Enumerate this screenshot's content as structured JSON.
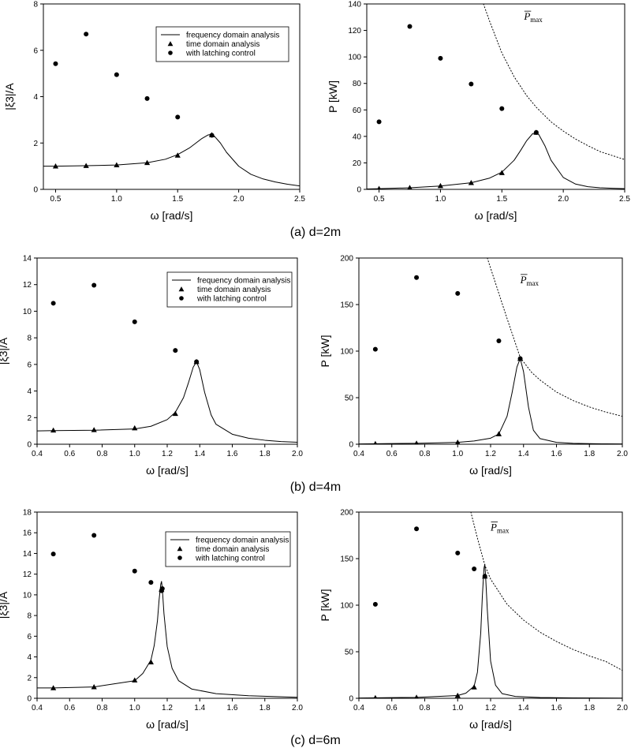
{
  "figure": {
    "captions": [
      "(a) d=2m",
      "(b) d=4m",
      "(c) d=6m"
    ]
  },
  "legend_labels": {
    "line": "frequency domain analysis",
    "triangle": "time domain analysis",
    "circle": "with latching control"
  },
  "pmax_label": {
    "symbol": "P",
    "subscript": "max"
  },
  "chart_data": [
    {
      "id": "a-left",
      "type": "line",
      "xlabel": "ω [rad/s]",
      "ylabel": "|ξ3|/A",
      "xlim": [
        0.4,
        2.5
      ],
      "ylim": [
        0,
        8
      ],
      "xticks": [
        0.5,
        1.0,
        1.5,
        2.0,
        2.5
      ],
      "xtick_labels": [
        "0.5",
        "1.0",
        "1.5",
        "2.0",
        "2.5"
      ],
      "yticks": [
        0,
        2,
        4,
        6,
        8
      ],
      "ytick_labels": [
        "0",
        "2",
        "4",
        "6",
        "8"
      ],
      "series": [
        {
          "name": "frequency domain analysis",
          "kind": "line",
          "x": [
            0.4,
            0.5,
            0.75,
            1.0,
            1.25,
            1.4,
            1.5,
            1.6,
            1.65,
            1.7,
            1.75,
            1.78,
            1.8,
            1.85,
            1.9,
            2.0,
            2.1,
            2.2,
            2.3,
            2.4,
            2.5
          ],
          "y": [
            1.0,
            1.0,
            1.02,
            1.05,
            1.15,
            1.3,
            1.5,
            1.8,
            2.0,
            2.2,
            2.35,
            2.37,
            2.3,
            2.0,
            1.6,
            1.0,
            0.65,
            0.45,
            0.32,
            0.22,
            0.15
          ]
        },
        {
          "name": "time domain analysis",
          "kind": "triangle",
          "x": [
            0.5,
            0.75,
            1.0,
            1.25,
            1.5,
            1.78
          ],
          "y": [
            1.0,
            1.02,
            1.05,
            1.15,
            1.47,
            2.35
          ]
        },
        {
          "name": "with latching control",
          "kind": "circle",
          "x": [
            0.5,
            0.75,
            1.0,
            1.25,
            1.5,
            1.78
          ],
          "y": [
            5.42,
            6.7,
            4.95,
            3.92,
            3.12,
            2.33
          ]
        }
      ],
      "legend": "top-right"
    },
    {
      "id": "a-right",
      "type": "line",
      "xlabel": "ω [rad/s]",
      "ylabel": "P [kW]",
      "xlim": [
        0.4,
        2.5
      ],
      "ylim": [
        0,
        140
      ],
      "xticks": [
        0.5,
        1.0,
        1.5,
        2.0,
        2.5
      ],
      "xtick_labels": [
        "0.5",
        "1.0",
        "1.5",
        "2.0",
        "2.5"
      ],
      "yticks": [
        0,
        20,
        40,
        60,
        80,
        100,
        120,
        140
      ],
      "ytick_labels": [
        "0",
        "20",
        "40",
        "60",
        "80",
        "100",
        "120",
        "140"
      ],
      "series": [
        {
          "name": "frequency domain analysis",
          "kind": "line",
          "x": [
            0.4,
            0.5,
            0.75,
            1.0,
            1.25,
            1.4,
            1.5,
            1.6,
            1.65,
            1.7,
            1.75,
            1.78,
            1.8,
            1.85,
            1.9,
            2.0,
            2.1,
            2.2,
            2.3,
            2.4,
            2.5
          ],
          "y": [
            0.3,
            0.5,
            1.2,
            2.5,
            5.0,
            8.5,
            13.0,
            22.0,
            29.0,
            36.5,
            42.0,
            43.0,
            41.5,
            33.0,
            22.0,
            9.0,
            4.0,
            2.0,
            1.2,
            0.8,
            0.5
          ]
        },
        {
          "name": "P̄max",
          "kind": "dotted",
          "x": [
            1.35,
            1.4,
            1.5,
            1.6,
            1.7,
            1.78,
            1.9,
            2.0,
            2.1,
            2.2,
            2.3,
            2.4,
            2.5
          ],
          "y": [
            140,
            127,
            103,
            85,
            71,
            62,
            51,
            44,
            38,
            33,
            28.5,
            25.5,
            22.5
          ]
        },
        {
          "name": "time domain analysis",
          "kind": "triangle",
          "x": [
            0.5,
            0.75,
            1.0,
            1.25,
            1.5,
            1.78
          ],
          "y": [
            0.5,
            1.3,
            2.7,
            5.0,
            12.5,
            43.0
          ]
        },
        {
          "name": "with latching control",
          "kind": "circle",
          "x": [
            0.5,
            0.75,
            1.0,
            1.25,
            1.5,
            1.78
          ],
          "y": [
            51,
            123,
            99,
            79.5,
            61,
            43
          ]
        }
      ],
      "pmax_anchor": [
        1.68,
        128
      ]
    },
    {
      "id": "b-left",
      "type": "line",
      "xlabel": "ω [rad/s]",
      "ylabel": "|ξ3|/A",
      "xlim": [
        0.4,
        2.0
      ],
      "ylim": [
        0,
        14
      ],
      "xticks": [
        0.4,
        0.6,
        0.8,
        1.0,
        1.2,
        1.4,
        1.6,
        1.8,
        2.0
      ],
      "xtick_labels": [
        "0.4",
        "0.6",
        "0.8",
        "1.0",
        "1.2",
        "1.4",
        "1.6",
        "1.8",
        "2.0"
      ],
      "yticks": [
        0,
        2,
        4,
        6,
        8,
        10,
        12,
        14
      ],
      "ytick_labels": [
        "0",
        "2",
        "4",
        "6",
        "8",
        "10",
        "12",
        "14"
      ],
      "series": [
        {
          "name": "frequency domain analysis",
          "kind": "line",
          "x": [
            0.4,
            0.5,
            0.75,
            1.0,
            1.1,
            1.2,
            1.25,
            1.3,
            1.33,
            1.36,
            1.38,
            1.4,
            1.43,
            1.47,
            1.5,
            1.6,
            1.7,
            1.8,
            1.9,
            2.0
          ],
          "y": [
            1.0,
            1.02,
            1.05,
            1.15,
            1.35,
            1.85,
            2.4,
            3.5,
            4.6,
            5.8,
            6.2,
            5.6,
            3.9,
            2.2,
            1.5,
            0.75,
            0.45,
            0.3,
            0.2,
            0.15
          ]
        },
        {
          "name": "time domain analysis",
          "kind": "triangle",
          "x": [
            0.5,
            0.75,
            1.0,
            1.25,
            1.38
          ],
          "y": [
            1.05,
            1.08,
            1.22,
            2.3,
            6.2
          ]
        },
        {
          "name": "with latching control",
          "kind": "circle",
          "x": [
            0.5,
            0.75,
            1.0,
            1.25,
            1.38
          ],
          "y": [
            10.6,
            11.95,
            9.2,
            7.05,
            6.2
          ]
        }
      ],
      "legend": "top-right"
    },
    {
      "id": "b-right",
      "type": "line",
      "xlabel": "ω [rad/s]",
      "ylabel": "P [kW]",
      "xlim": [
        0.4,
        2.0
      ],
      "ylim": [
        0,
        200
      ],
      "xticks": [
        0.4,
        0.6,
        0.8,
        1.0,
        1.2,
        1.4,
        1.6,
        1.8,
        2.0
      ],
      "xtick_labels": [
        "0.4",
        "0.6",
        "0.8",
        "1.0",
        "1.2",
        "1.4",
        "1.6",
        "1.8",
        "2.0"
      ],
      "yticks": [
        0,
        50,
        100,
        150,
        200
      ],
      "ytick_labels": [
        "0",
        "50",
        "100",
        "150",
        "200"
      ],
      "series": [
        {
          "name": "frequency domain analysis",
          "kind": "line",
          "x": [
            0.4,
            0.5,
            0.75,
            1.0,
            1.1,
            1.2,
            1.25,
            1.3,
            1.33,
            1.36,
            1.38,
            1.4,
            1.43,
            1.46,
            1.5,
            1.6,
            1.7,
            1.8,
            1.9,
            2.0
          ],
          "y": [
            0.3,
            0.5,
            1.0,
            2.0,
            3.5,
            6.5,
            11.0,
            30.0,
            55.0,
            83.0,
            92.0,
            78.0,
            40.0,
            15.0,
            6.0,
            2.0,
            1.0,
            0.6,
            0.4,
            0.3
          ]
        },
        {
          "name": "P̄max",
          "kind": "dotted",
          "x": [
            1.18,
            1.25,
            1.3,
            1.38,
            1.45,
            1.5,
            1.6,
            1.7,
            1.8,
            1.9,
            2.0
          ],
          "y": [
            200,
            162,
            135,
            93,
            77,
            69,
            56,
            47,
            40,
            34.5,
            30
          ]
        },
        {
          "name": "time domain analysis",
          "kind": "triangle",
          "x": [
            0.5,
            0.75,
            1.0,
            1.25,
            1.38
          ],
          "y": [
            0.5,
            1.0,
            2.0,
            11.0,
            92.0
          ]
        },
        {
          "name": "with latching control",
          "kind": "circle",
          "x": [
            0.5,
            0.75,
            1.0,
            1.25,
            1.38
          ],
          "y": [
            102,
            179,
            162,
            111,
            92
          ]
        }
      ],
      "pmax_anchor": [
        1.38,
        173
      ]
    },
    {
      "id": "c-left",
      "type": "line",
      "xlabel": "ω [rad/s]",
      "ylabel": "|ξ3|/A",
      "xlim": [
        0.4,
        2.0
      ],
      "ylim": [
        0,
        18
      ],
      "xticks": [
        0.4,
        0.6,
        0.8,
        1.0,
        1.2,
        1.4,
        1.6,
        1.8,
        2.0
      ],
      "xtick_labels": [
        "0.4",
        "0.6",
        "0.8",
        "1.0",
        "1.2",
        "1.4",
        "1.6",
        "1.8",
        "2.0"
      ],
      "yticks": [
        0,
        2,
        4,
        6,
        8,
        10,
        12,
        14,
        16,
        18
      ],
      "ytick_labels": [
        "0",
        "2",
        "4",
        "6",
        "8",
        "10",
        "12",
        "14",
        "16",
        "18"
      ],
      "series": [
        {
          "name": "frequency domain analysis",
          "kind": "line",
          "x": [
            0.4,
            0.5,
            0.75,
            1.0,
            1.05,
            1.1,
            1.12,
            1.14,
            1.15,
            1.16,
            1.165,
            1.17,
            1.18,
            1.2,
            1.23,
            1.27,
            1.35,
            1.5,
            1.7,
            2.0
          ],
          "y": [
            1.0,
            1.0,
            1.1,
            1.7,
            2.4,
            3.7,
            5.1,
            7.5,
            9.5,
            11.0,
            11.3,
            10.6,
            8.2,
            5.0,
            2.9,
            1.7,
            0.9,
            0.45,
            0.25,
            0.1
          ]
        },
        {
          "name": "time domain analysis",
          "kind": "triangle",
          "x": [
            0.5,
            0.75,
            1.0,
            1.1,
            1.165
          ],
          "y": [
            1.0,
            1.1,
            1.75,
            3.5,
            10.5
          ]
        },
        {
          "name": "with latching control",
          "kind": "circle",
          "x": [
            0.5,
            0.75,
            1.0,
            1.1,
            1.165,
            1.17
          ],
          "y": [
            13.95,
            15.75,
            12.3,
            11.2,
            10.4,
            10.6
          ]
        }
      ],
      "legend": "top-right"
    },
    {
      "id": "c-right",
      "type": "line",
      "xlabel": "ω [rad/s]",
      "ylabel": "P [kW]",
      "xlim": [
        0.4,
        2.0
      ],
      "ylim": [
        0,
        200
      ],
      "xticks": [
        0.4,
        0.6,
        0.8,
        1.0,
        1.2,
        1.4,
        1.6,
        1.8,
        2.0
      ],
      "xtick_labels": [
        "0.4",
        "0.6",
        "0.8",
        "1.0",
        "1.2",
        "1.4",
        "1.6",
        "1.8",
        "2.0"
      ],
      "yticks": [
        0,
        50,
        100,
        150,
        200
      ],
      "ytick_labels": [
        "0",
        "50",
        "100",
        "150",
        "200"
      ],
      "series": [
        {
          "name": "frequency domain analysis",
          "kind": "line",
          "x": [
            0.4,
            0.5,
            0.75,
            1.0,
            1.05,
            1.1,
            1.12,
            1.14,
            1.15,
            1.16,
            1.165,
            1.17,
            1.18,
            1.2,
            1.23,
            1.27,
            1.35,
            1.5,
            1.7,
            2.0
          ],
          "y": [
            0.3,
            0.5,
            1.0,
            3.0,
            5.5,
            13.0,
            28.0,
            70.0,
            110.0,
            140.0,
            144.0,
            130.0,
            95.0,
            40.0,
            14.0,
            5.0,
            2.0,
            0.8,
            0.4,
            0.2
          ]
        },
        {
          "name": "P̄max",
          "kind": "dotted",
          "x": [
            1.08,
            1.12,
            1.165,
            1.2,
            1.3,
            1.4,
            1.5,
            1.6,
            1.7,
            1.8,
            1.9,
            2.0
          ],
          "y": [
            200,
            172,
            143,
            128,
            101,
            84,
            71,
            61,
            52.5,
            45.5,
            39.5,
            30
          ]
        },
        {
          "name": "time domain analysis",
          "kind": "triangle",
          "x": [
            0.5,
            0.75,
            1.0,
            1.1,
            1.165
          ],
          "y": [
            0.5,
            1.0,
            3.0,
            12.0,
            131.0
          ]
        },
        {
          "name": "with latching control",
          "kind": "circle",
          "x": [
            0.5,
            0.75,
            1.0,
            1.1,
            1.165
          ],
          "y": [
            101,
            182,
            156,
            139,
            131
          ]
        }
      ],
      "pmax_anchor": [
        1.2,
        180
      ]
    }
  ]
}
